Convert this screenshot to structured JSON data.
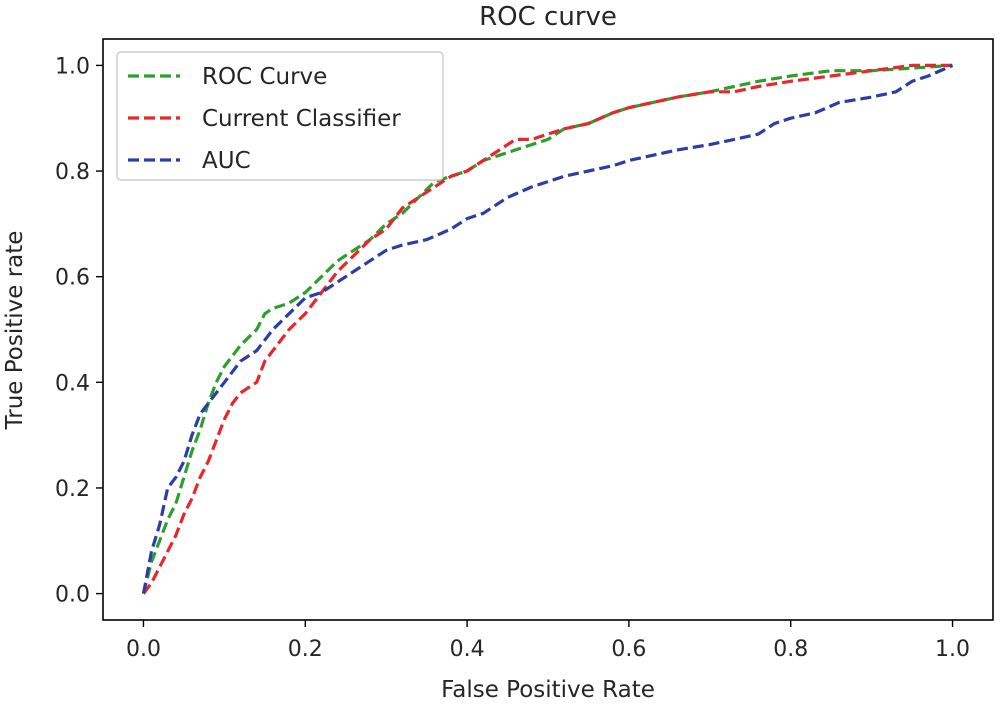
{
  "chart_data": {
    "type": "line",
    "title": "ROC curve",
    "xlabel": "False Positive Rate",
    "ylabel": "True Positive rate",
    "xlim": [
      -0.05,
      1.05
    ],
    "ylim": [
      -0.05,
      1.05
    ],
    "xticks": [
      "0.0",
      "0.2",
      "0.4",
      "0.6",
      "0.8",
      "1.0"
    ],
    "yticks": [
      "0.0",
      "0.2",
      "0.4",
      "0.6",
      "0.8",
      "1.0"
    ],
    "xtick_values": [
      0,
      0.2,
      0.4,
      0.6,
      0.8,
      1.0
    ],
    "ytick_values": [
      0,
      0.2,
      0.4,
      0.6,
      0.8,
      1.0
    ],
    "grid": false,
    "legend_position": "upper-left",
    "line_style": "dashed",
    "series": [
      {
        "name": "ROC Curve",
        "color": "#2ca02c",
        "x": [
          0.0,
          0.01,
          0.02,
          0.03,
          0.04,
          0.05,
          0.06,
          0.07,
          0.08,
          0.09,
          0.1,
          0.12,
          0.14,
          0.15,
          0.16,
          0.18,
          0.2,
          0.22,
          0.24,
          0.26,
          0.28,
          0.3,
          0.32,
          0.34,
          0.36,
          0.38,
          0.4,
          0.42,
          0.44,
          0.46,
          0.48,
          0.5,
          0.52,
          0.55,
          0.58,
          0.6,
          0.63,
          0.66,
          0.7,
          0.73,
          0.76,
          0.8,
          0.85,
          0.9,
          0.95,
          1.0
        ],
        "y": [
          0.0,
          0.06,
          0.1,
          0.14,
          0.17,
          0.22,
          0.27,
          0.31,
          0.36,
          0.4,
          0.43,
          0.47,
          0.5,
          0.53,
          0.54,
          0.55,
          0.57,
          0.6,
          0.63,
          0.65,
          0.67,
          0.7,
          0.72,
          0.75,
          0.78,
          0.79,
          0.8,
          0.82,
          0.83,
          0.84,
          0.85,
          0.86,
          0.88,
          0.89,
          0.91,
          0.92,
          0.93,
          0.94,
          0.95,
          0.96,
          0.97,
          0.98,
          0.99,
          0.99,
          0.995,
          1.0
        ]
      },
      {
        "name": "Current Classifier",
        "color": "#e8262b",
        "x": [
          0.0,
          0.01,
          0.02,
          0.03,
          0.04,
          0.05,
          0.06,
          0.07,
          0.08,
          0.09,
          0.1,
          0.11,
          0.12,
          0.14,
          0.15,
          0.16,
          0.18,
          0.2,
          0.22,
          0.24,
          0.26,
          0.28,
          0.3,
          0.32,
          0.34,
          0.36,
          0.38,
          0.4,
          0.42,
          0.44,
          0.46,
          0.48,
          0.5,
          0.52,
          0.55,
          0.58,
          0.6,
          0.63,
          0.66,
          0.7,
          0.73,
          0.76,
          0.8,
          0.85,
          0.9,
          0.95,
          1.0
        ],
        "y": [
          0.0,
          0.02,
          0.05,
          0.08,
          0.11,
          0.15,
          0.18,
          0.22,
          0.25,
          0.29,
          0.33,
          0.36,
          0.38,
          0.4,
          0.44,
          0.46,
          0.5,
          0.53,
          0.57,
          0.61,
          0.64,
          0.67,
          0.69,
          0.73,
          0.75,
          0.77,
          0.79,
          0.8,
          0.82,
          0.84,
          0.86,
          0.86,
          0.87,
          0.88,
          0.89,
          0.91,
          0.92,
          0.93,
          0.94,
          0.95,
          0.95,
          0.96,
          0.97,
          0.98,
          0.99,
          1.0,
          1.0
        ]
      },
      {
        "name": "AUC",
        "color": "#2b3ea8",
        "x": [
          0.0,
          0.01,
          0.02,
          0.03,
          0.04,
          0.05,
          0.06,
          0.07,
          0.08,
          0.1,
          0.12,
          0.14,
          0.16,
          0.18,
          0.2,
          0.22,
          0.24,
          0.26,
          0.28,
          0.3,
          0.32,
          0.35,
          0.38,
          0.4,
          0.42,
          0.45,
          0.48,
          0.5,
          0.52,
          0.55,
          0.58,
          0.6,
          0.63,
          0.66,
          0.7,
          0.73,
          0.76,
          0.78,
          0.8,
          0.83,
          0.86,
          0.9,
          0.93,
          0.95,
          0.97,
          1.0
        ],
        "y": [
          0.0,
          0.08,
          0.13,
          0.2,
          0.22,
          0.25,
          0.3,
          0.34,
          0.36,
          0.4,
          0.44,
          0.46,
          0.5,
          0.53,
          0.56,
          0.57,
          0.59,
          0.61,
          0.63,
          0.65,
          0.66,
          0.67,
          0.69,
          0.71,
          0.72,
          0.75,
          0.77,
          0.78,
          0.79,
          0.8,
          0.81,
          0.82,
          0.83,
          0.84,
          0.85,
          0.86,
          0.87,
          0.89,
          0.9,
          0.91,
          0.93,
          0.94,
          0.95,
          0.97,
          0.98,
          1.0
        ]
      }
    ]
  }
}
